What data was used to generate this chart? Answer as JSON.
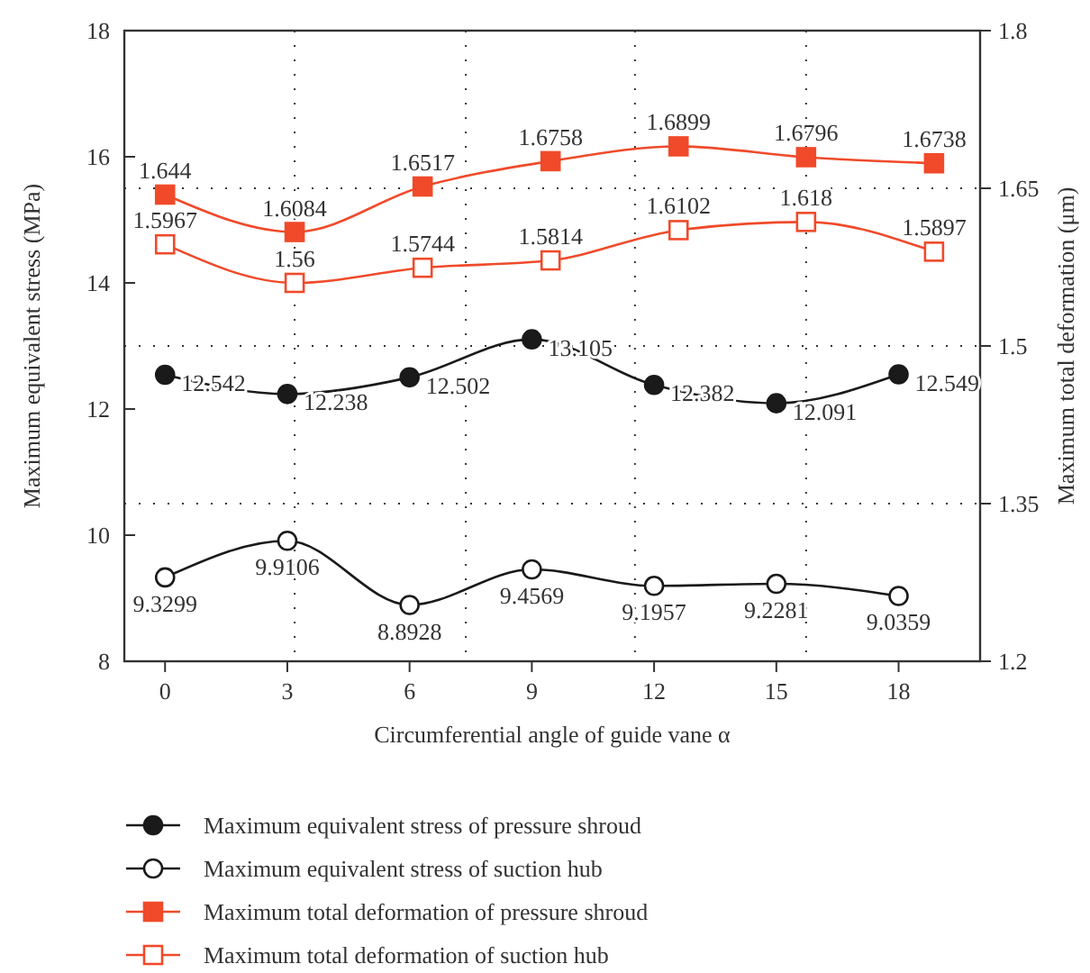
{
  "chart_data": {
    "type": "line",
    "xlabel": "Circumferential angle of guide vane α",
    "ylabel": "Maximum equivalent stress (MPa)",
    "y2label": "Maximum total deformation (μm)",
    "x": [
      0,
      3,
      6,
      9,
      12,
      15,
      18
    ],
    "xlim": [
      -1,
      20
    ],
    "xticks": [
      0,
      3,
      6,
      9,
      12,
      15,
      18
    ],
    "ylim": [
      8,
      18
    ],
    "yticks": [
      8,
      10,
      12,
      14,
      16,
      18
    ],
    "y2lim": [
      1.2,
      1.8
    ],
    "y2ticks": [
      1.2,
      1.35,
      1.5,
      1.65,
      1.8
    ],
    "grid": "y",
    "legend": "bottom",
    "data_labels": true,
    "line_style": "solid",
    "ref_lines": [
      {
        "axis": "x",
        "value": 3.18,
        "line_style": "dotted"
      },
      {
        "axis": "x",
        "value": 7.38,
        "line_style": "dotted"
      },
      {
        "axis": "x",
        "value": 11.53,
        "line_style": "dotted"
      },
      {
        "axis": "x",
        "value": 15.73,
        "line_style": "dotted"
      }
    ],
    "series": [
      {
        "name": "Maximum equivalent stress of pressure shroud",
        "color": "#1a1a1a",
        "marker": "circle",
        "values": [
          12.542,
          12.238,
          12.502,
          13.105,
          12.382,
          12.091,
          12.549
        ]
      },
      {
        "name": "Maximum equivalent stress of suction hub",
        "color": "#1a1a1a",
        "marker": "circle",
        "values": [
          9.3299,
          9.9106,
          8.8928,
          9.4569,
          9.1957,
          9.2281,
          9.0359
        ]
      },
      {
        "name": "Maximum total deformation of pressure shroud",
        "color": "#f04a2a",
        "marker": "square",
        "axis": "y2",
        "x": [
          0,
          3.18,
          6.32,
          9.46,
          12.6,
          15.73,
          18.87
        ],
        "values": [
          1.644,
          1.6084,
          1.6517,
          1.6758,
          1.6899,
          1.6796,
          1.6738
        ]
      },
      {
        "name": "Maximum total deformation of suction hub",
        "color": "#f04a2a",
        "marker": "square",
        "axis": "y2",
        "x": [
          0,
          3.18,
          6.32,
          9.46,
          12.6,
          15.73,
          18.87
        ],
        "values": [
          1.5967,
          1.56,
          1.5744,
          1.5814,
          1.6102,
          1.618,
          1.5897
        ]
      }
    ]
  }
}
